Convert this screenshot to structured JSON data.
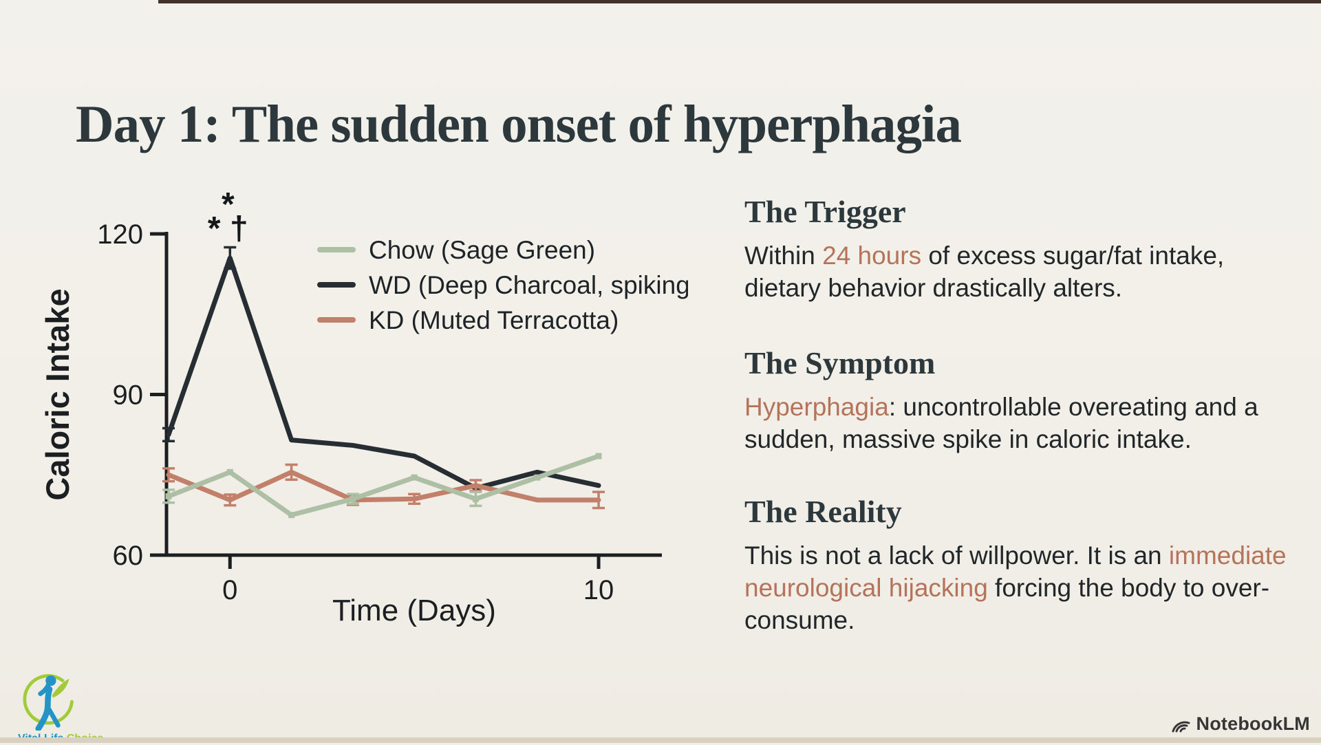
{
  "slide": {
    "title": "Day 1: The sudden onset of hyperphagia"
  },
  "colors": {
    "background": "#f1efe9",
    "title_text": "#2d383c",
    "body_text": "#212629",
    "accent_terracotta": "#b5735a",
    "axis": "#1b1f22",
    "top_strip": "#41302b",
    "bottom_strip": "#d9d0c2",
    "logo_blue": "#2493c6",
    "logo_green": "#a2cb3a",
    "footer_text": "#363636"
  },
  "chart_data": {
    "type": "line",
    "title": "",
    "xlabel": "Time (Days)",
    "ylabel": "Caloric Intake",
    "ylim": [
      60,
      120
    ],
    "yticks": [
      120,
      90,
      60
    ],
    "xticks": [
      {
        "day": 0,
        "label": "0"
      },
      {
        "day": 10,
        "label": "10"
      }
    ],
    "x_days": [
      -2,
      0,
      1.7,
      3.3,
      5,
      6.7,
      8.3,
      10
    ],
    "grid": false,
    "legend_position": "upper-right-inside",
    "series": [
      {
        "name": "Chow (Sage Green)",
        "color": "#adbfa4",
        "marker": true,
        "values": [
          71,
          75.5,
          67.5,
          70.5,
          74.5,
          70.5,
          74.5,
          78.5
        ],
        "sem": [
          1.2,
          0,
          0,
          0.9,
          0,
          1.3,
          0,
          0
        ]
      },
      {
        "name": "WD (Deep Charcoal, spiking)",
        "color": "#262e33",
        "marker": false,
        "values": [
          82.5,
          115.5,
          81.5,
          80.5,
          78.5,
          72.5,
          75.5,
          73
        ],
        "sem": [
          1.2,
          2,
          0,
          0,
          0,
          0,
          0,
          0
        ]
      },
      {
        "name": "KD (Muted Terracotta)",
        "color": "#c2806a",
        "marker": false,
        "values": [
          75,
          70.3,
          75.5,
          70.3,
          70.5,
          73,
          70.3,
          70.3
        ],
        "sem": [
          1.2,
          1,
          1.4,
          0.9,
          0.9,
          1,
          0,
          1.5
        ]
      }
    ],
    "annotations": [
      {
        "text": "*",
        "day": 0,
        "value": 123.5
      },
      {
        "text": "* †",
        "day": 0,
        "value": 119
      }
    ]
  },
  "sections": [
    {
      "heading": "The Trigger",
      "body": [
        {
          "t": "Within "
        },
        {
          "t": "24 hours",
          "accent": true
        },
        {
          "t": " of excess sugar/fat intake, dietary behavior drastically alters."
        }
      ]
    },
    {
      "heading": "The Symptom",
      "body": [
        {
          "t": "Hyperphagia",
          "accent": true
        },
        {
          "t": ": uncontrollable overeating and a sudden, massive spike in caloric intake."
        }
      ]
    },
    {
      "heading": "The Reality",
      "body": [
        {
          "t": "This is not a lack of willpower. It is an "
        },
        {
          "t": "immediate neurological hijacking",
          "accent": true
        },
        {
          "t": " forcing the body to over-consume."
        }
      ]
    }
  ],
  "logo": {
    "wordmark_part1": "Vital Life",
    "wordmark_part2": "Choice"
  },
  "footer": {
    "brand": "NotebookLM"
  }
}
